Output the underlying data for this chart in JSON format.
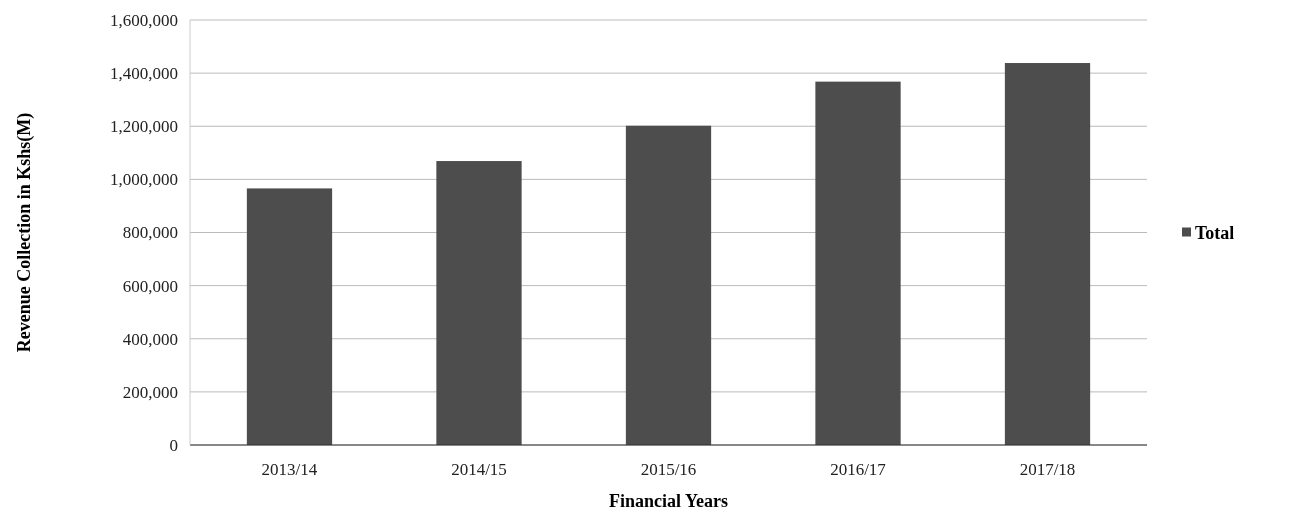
{
  "chart_data": {
    "type": "bar",
    "xlabel": "Financial Years",
    "ylabel": "Revenue Collection in Kshs(M)",
    "categories": [
      "2013/14",
      "2014/15",
      "2015/16",
      "2016/17",
      "2017/18"
    ],
    "series": [
      {
        "name": "Total",
        "color": "#4d4d4d",
        "values": [
          966000,
          1069000,
          1202000,
          1368000,
          1438000
        ]
      }
    ],
    "ylim": [
      0,
      1600000
    ],
    "yticks": [
      {
        "value": 0,
        "label": "0"
      },
      {
        "value": 200000,
        "label": "200,000"
      },
      {
        "value": 400000,
        "label": "400,000"
      },
      {
        "value": 600000,
        "label": "600,000"
      },
      {
        "value": 800000,
        "label": "800,000"
      },
      {
        "value": 1000000,
        "label": "1,000,000"
      },
      {
        "value": 1200000,
        "label": "1,200,000"
      },
      {
        "value": 1400000,
        "label": "1,400,000"
      },
      {
        "value": 1600000,
        "label": "1,600,000"
      }
    ],
    "grid": "y",
    "legend": "right"
  }
}
